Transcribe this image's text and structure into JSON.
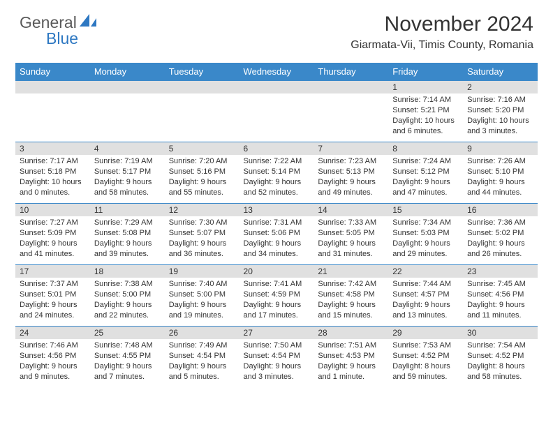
{
  "logo": {
    "general": "General",
    "blue": "Blue"
  },
  "header": {
    "month_title": "November 2024",
    "location": "Giarmata-Vii, Timis County, Romania"
  },
  "colors": {
    "header_bg": "#3a88c9",
    "header_text": "#ffffff",
    "daynum_bg": "#e0e0e0",
    "border": "#3a88c9",
    "logo_blue": "#2e78c2",
    "logo_gray": "#5a5a5a"
  },
  "daynames": [
    "Sunday",
    "Monday",
    "Tuesday",
    "Wednesday",
    "Thursday",
    "Friday",
    "Saturday"
  ],
  "weeks": [
    [
      {
        "n": "",
        "lines": []
      },
      {
        "n": "",
        "lines": []
      },
      {
        "n": "",
        "lines": []
      },
      {
        "n": "",
        "lines": []
      },
      {
        "n": "",
        "lines": []
      },
      {
        "n": "1",
        "lines": [
          "Sunrise: 7:14 AM",
          "Sunset: 5:21 PM",
          "Daylight: 10 hours",
          "and 6 minutes."
        ]
      },
      {
        "n": "2",
        "lines": [
          "Sunrise: 7:16 AM",
          "Sunset: 5:20 PM",
          "Daylight: 10 hours",
          "and 3 minutes."
        ]
      }
    ],
    [
      {
        "n": "3",
        "lines": [
          "Sunrise: 7:17 AM",
          "Sunset: 5:18 PM",
          "Daylight: 10 hours",
          "and 0 minutes."
        ]
      },
      {
        "n": "4",
        "lines": [
          "Sunrise: 7:19 AM",
          "Sunset: 5:17 PM",
          "Daylight: 9 hours",
          "and 58 minutes."
        ]
      },
      {
        "n": "5",
        "lines": [
          "Sunrise: 7:20 AM",
          "Sunset: 5:16 PM",
          "Daylight: 9 hours",
          "and 55 minutes."
        ]
      },
      {
        "n": "6",
        "lines": [
          "Sunrise: 7:22 AM",
          "Sunset: 5:14 PM",
          "Daylight: 9 hours",
          "and 52 minutes."
        ]
      },
      {
        "n": "7",
        "lines": [
          "Sunrise: 7:23 AM",
          "Sunset: 5:13 PM",
          "Daylight: 9 hours",
          "and 49 minutes."
        ]
      },
      {
        "n": "8",
        "lines": [
          "Sunrise: 7:24 AM",
          "Sunset: 5:12 PM",
          "Daylight: 9 hours",
          "and 47 minutes."
        ]
      },
      {
        "n": "9",
        "lines": [
          "Sunrise: 7:26 AM",
          "Sunset: 5:10 PM",
          "Daylight: 9 hours",
          "and 44 minutes."
        ]
      }
    ],
    [
      {
        "n": "10",
        "lines": [
          "Sunrise: 7:27 AM",
          "Sunset: 5:09 PM",
          "Daylight: 9 hours",
          "and 41 minutes."
        ]
      },
      {
        "n": "11",
        "lines": [
          "Sunrise: 7:29 AM",
          "Sunset: 5:08 PM",
          "Daylight: 9 hours",
          "and 39 minutes."
        ]
      },
      {
        "n": "12",
        "lines": [
          "Sunrise: 7:30 AM",
          "Sunset: 5:07 PM",
          "Daylight: 9 hours",
          "and 36 minutes."
        ]
      },
      {
        "n": "13",
        "lines": [
          "Sunrise: 7:31 AM",
          "Sunset: 5:06 PM",
          "Daylight: 9 hours",
          "and 34 minutes."
        ]
      },
      {
        "n": "14",
        "lines": [
          "Sunrise: 7:33 AM",
          "Sunset: 5:05 PM",
          "Daylight: 9 hours",
          "and 31 minutes."
        ]
      },
      {
        "n": "15",
        "lines": [
          "Sunrise: 7:34 AM",
          "Sunset: 5:03 PM",
          "Daylight: 9 hours",
          "and 29 minutes."
        ]
      },
      {
        "n": "16",
        "lines": [
          "Sunrise: 7:36 AM",
          "Sunset: 5:02 PM",
          "Daylight: 9 hours",
          "and 26 minutes."
        ]
      }
    ],
    [
      {
        "n": "17",
        "lines": [
          "Sunrise: 7:37 AM",
          "Sunset: 5:01 PM",
          "Daylight: 9 hours",
          "and 24 minutes."
        ]
      },
      {
        "n": "18",
        "lines": [
          "Sunrise: 7:38 AM",
          "Sunset: 5:00 PM",
          "Daylight: 9 hours",
          "and 22 minutes."
        ]
      },
      {
        "n": "19",
        "lines": [
          "Sunrise: 7:40 AM",
          "Sunset: 5:00 PM",
          "Daylight: 9 hours",
          "and 19 minutes."
        ]
      },
      {
        "n": "20",
        "lines": [
          "Sunrise: 7:41 AM",
          "Sunset: 4:59 PM",
          "Daylight: 9 hours",
          "and 17 minutes."
        ]
      },
      {
        "n": "21",
        "lines": [
          "Sunrise: 7:42 AM",
          "Sunset: 4:58 PM",
          "Daylight: 9 hours",
          "and 15 minutes."
        ]
      },
      {
        "n": "22",
        "lines": [
          "Sunrise: 7:44 AM",
          "Sunset: 4:57 PM",
          "Daylight: 9 hours",
          "and 13 minutes."
        ]
      },
      {
        "n": "23",
        "lines": [
          "Sunrise: 7:45 AM",
          "Sunset: 4:56 PM",
          "Daylight: 9 hours",
          "and 11 minutes."
        ]
      }
    ],
    [
      {
        "n": "24",
        "lines": [
          "Sunrise: 7:46 AM",
          "Sunset: 4:56 PM",
          "Daylight: 9 hours",
          "and 9 minutes."
        ]
      },
      {
        "n": "25",
        "lines": [
          "Sunrise: 7:48 AM",
          "Sunset: 4:55 PM",
          "Daylight: 9 hours",
          "and 7 minutes."
        ]
      },
      {
        "n": "26",
        "lines": [
          "Sunrise: 7:49 AM",
          "Sunset: 4:54 PM",
          "Daylight: 9 hours",
          "and 5 minutes."
        ]
      },
      {
        "n": "27",
        "lines": [
          "Sunrise: 7:50 AM",
          "Sunset: 4:54 PM",
          "Daylight: 9 hours",
          "and 3 minutes."
        ]
      },
      {
        "n": "28",
        "lines": [
          "Sunrise: 7:51 AM",
          "Sunset: 4:53 PM",
          "Daylight: 9 hours",
          "and 1 minute."
        ]
      },
      {
        "n": "29",
        "lines": [
          "Sunrise: 7:53 AM",
          "Sunset: 4:52 PM",
          "Daylight: 8 hours",
          "and 59 minutes."
        ]
      },
      {
        "n": "30",
        "lines": [
          "Sunrise: 7:54 AM",
          "Sunset: 4:52 PM",
          "Daylight: 8 hours",
          "and 58 minutes."
        ]
      }
    ]
  ]
}
